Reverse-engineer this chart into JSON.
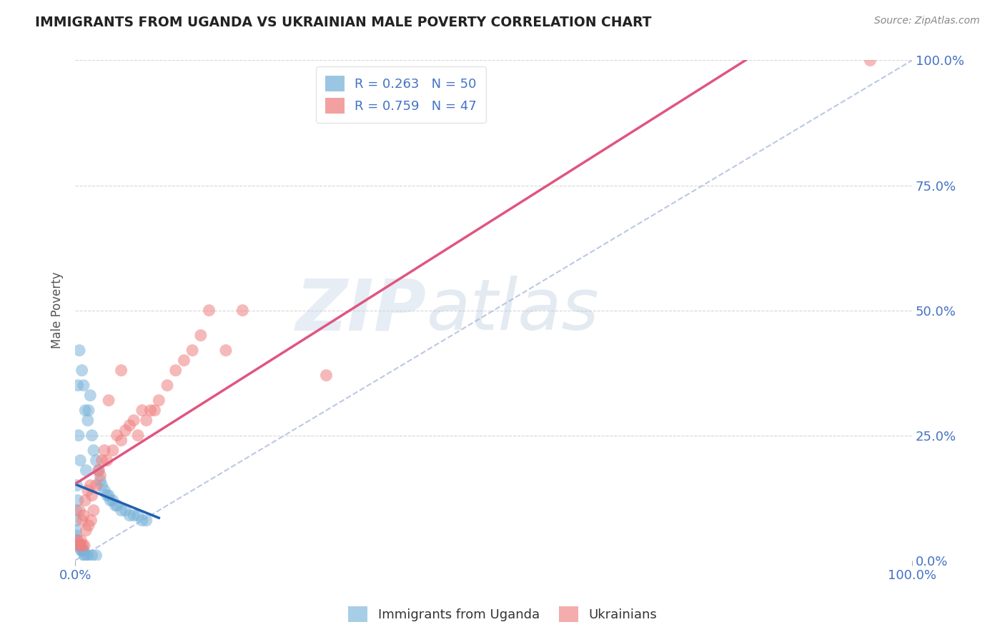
{
  "title": "IMMIGRANTS FROM UGANDA VS UKRAINIAN MALE POVERTY CORRELATION CHART",
  "source": "Source: ZipAtlas.com",
  "ylabel": "Male Poverty",
  "watermark_zip": "ZIP",
  "watermark_atlas": "atlas",
  "legend_entry1": "R = 0.263   N = 50",
  "legend_entry2": "R = 0.759   N = 47",
  "uganda_color": "#7ab3d9",
  "ukraine_color": "#f08080",
  "uganda_scatter": [
    [
      0.5,
      42
    ],
    [
      0.8,
      38
    ],
    [
      1.0,
      35
    ],
    [
      1.2,
      30
    ],
    [
      0.3,
      35
    ],
    [
      0.4,
      25
    ],
    [
      0.6,
      20
    ],
    [
      1.3,
      18
    ],
    [
      1.6,
      30
    ],
    [
      1.5,
      28
    ],
    [
      1.8,
      33
    ],
    [
      2.0,
      25
    ],
    [
      2.2,
      22
    ],
    [
      2.5,
      20
    ],
    [
      2.8,
      18
    ],
    [
      3.0,
      16
    ],
    [
      3.2,
      15
    ],
    [
      3.5,
      14
    ],
    [
      3.8,
      13
    ],
    [
      4.0,
      13
    ],
    [
      4.2,
      12
    ],
    [
      4.5,
      12
    ],
    [
      4.8,
      11
    ],
    [
      5.0,
      11
    ],
    [
      5.5,
      10
    ],
    [
      6.0,
      10
    ],
    [
      6.5,
      9
    ],
    [
      7.0,
      9
    ],
    [
      7.5,
      9
    ],
    [
      8.0,
      8
    ],
    [
      8.5,
      8
    ],
    [
      0.2,
      15
    ],
    [
      0.3,
      12
    ],
    [
      0.1,
      10
    ],
    [
      0.1,
      8
    ],
    [
      0.1,
      6
    ],
    [
      0.1,
      5
    ],
    [
      0.2,
      4
    ],
    [
      0.3,
      3
    ],
    [
      0.5,
      3
    ],
    [
      0.6,
      3
    ],
    [
      0.7,
      2
    ],
    [
      0.8,
      2
    ],
    [
      0.9,
      2
    ],
    [
      1.0,
      2
    ],
    [
      1.1,
      1
    ],
    [
      1.2,
      1
    ],
    [
      1.5,
      1
    ],
    [
      2.0,
      1
    ],
    [
      2.5,
      1
    ]
  ],
  "ukraine_scatter": [
    [
      0.5,
      10
    ],
    [
      0.8,
      8
    ],
    [
      1.0,
      9
    ],
    [
      1.2,
      12
    ],
    [
      1.5,
      14
    ],
    [
      1.8,
      15
    ],
    [
      2.0,
      13
    ],
    [
      2.2,
      10
    ],
    [
      2.5,
      15
    ],
    [
      2.8,
      18
    ],
    [
      3.0,
      17
    ],
    [
      3.2,
      20
    ],
    [
      3.5,
      22
    ],
    [
      3.8,
      20
    ],
    [
      4.0,
      32
    ],
    [
      4.5,
      22
    ],
    [
      5.0,
      25
    ],
    [
      5.5,
      24
    ],
    [
      6.0,
      26
    ],
    [
      6.5,
      27
    ],
    [
      7.0,
      28
    ],
    [
      7.5,
      25
    ],
    [
      8.0,
      30
    ],
    [
      8.5,
      28
    ],
    [
      9.0,
      30
    ],
    [
      9.5,
      30
    ],
    [
      10.0,
      32
    ],
    [
      11.0,
      35
    ],
    [
      12.0,
      38
    ],
    [
      13.0,
      40
    ],
    [
      14.0,
      42
    ],
    [
      15.0,
      45
    ],
    [
      18.0,
      42
    ],
    [
      20.0,
      50
    ],
    [
      0.3,
      4
    ],
    [
      0.4,
      3
    ],
    [
      0.6,
      3
    ],
    [
      0.7,
      4
    ],
    [
      0.9,
      3
    ],
    [
      1.1,
      3
    ],
    [
      1.3,
      6
    ],
    [
      1.6,
      7
    ],
    [
      1.9,
      8
    ],
    [
      5.5,
      38
    ],
    [
      30.0,
      37
    ],
    [
      95.0,
      100
    ],
    [
      16.0,
      50
    ]
  ],
  "yticks": [
    0,
    25,
    50,
    75,
    100
  ],
  "ytick_labels": [
    "0.0%",
    "25.0%",
    "50.0%",
    "75.0%",
    "100.0%"
  ],
  "xticks": [
    0,
    100
  ],
  "xtick_labels": [
    "0.0%",
    "100.0%"
  ],
  "xlim": [
    0.0,
    100.0
  ],
  "ylim": [
    0.0,
    100.0
  ],
  "background_color": "#ffffff",
  "grid_color": "#cccccc",
  "title_color": "#222222",
  "source_color": "#888888",
  "diagonal_color": "#aabbdd",
  "uganda_line_color": "#2060b0",
  "ukraine_line_color": "#e05580"
}
